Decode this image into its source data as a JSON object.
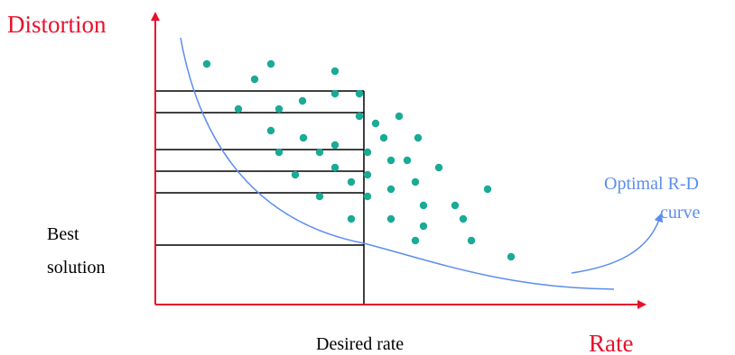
{
  "labels": {
    "y_axis": "Distortion",
    "x_axis": "Rate",
    "desired_rate": "Desired rate",
    "best_solution_line1": "Best",
    "best_solution_line2": "solution",
    "optimal_curve_line1": "Optimal R-D",
    "optimal_curve_line2": "curve"
  },
  "colors": {
    "axis": "#e8112d",
    "axis_label": "#e8112d",
    "curve": "#5b8def",
    "curve_label": "#5b8def",
    "points": "#1aaa96",
    "grid_lines": "#000000",
    "text": "#000000"
  },
  "operating_points": {
    "count": 45,
    "shape": "dot"
  },
  "horizontal_levels": 6
}
